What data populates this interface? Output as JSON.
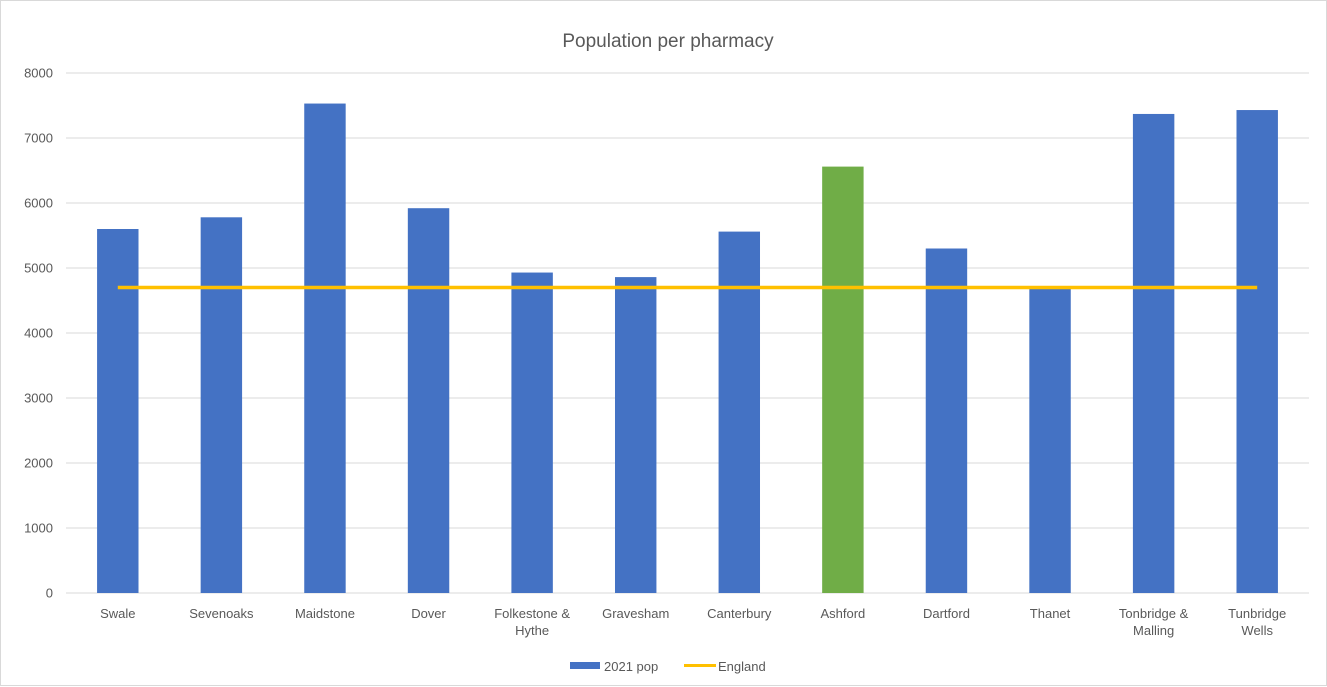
{
  "chart_data": {
    "type": "bar",
    "title": "Population per pharmacy",
    "categories": [
      [
        "Swale"
      ],
      [
        "Sevenoaks"
      ],
      [
        "Maidstone"
      ],
      [
        "Dover"
      ],
      [
        "Folkestone &",
        "Hythe"
      ],
      [
        "Gravesham"
      ],
      [
        "Canterbury"
      ],
      [
        "Ashford"
      ],
      [
        "Dartford"
      ],
      [
        "Thanet"
      ],
      [
        "Tonbridge &",
        "Malling"
      ],
      [
        "Tunbridge",
        "Wells"
      ]
    ],
    "series": [
      {
        "name": "2021 pop",
        "type": "bar",
        "color": "#4472c4",
        "values": [
          5600,
          5780,
          7530,
          5920,
          4930,
          4860,
          5560,
          6560,
          5300,
          4680,
          7370,
          7430
        ],
        "point_colors": {
          "7": "#70ad47"
        }
      },
      {
        "name": "England",
        "type": "line",
        "color": "#ffc000",
        "values": [
          4700,
          4700,
          4700,
          4700,
          4700,
          4700,
          4700,
          4700,
          4700,
          4700,
          4700,
          4700
        ]
      }
    ],
    "ylim": [
      0,
      8000
    ],
    "yticks": [
      0,
      1000,
      2000,
      3000,
      4000,
      5000,
      6000,
      7000,
      8000
    ],
    "grid": true,
    "legend": "bottom"
  }
}
